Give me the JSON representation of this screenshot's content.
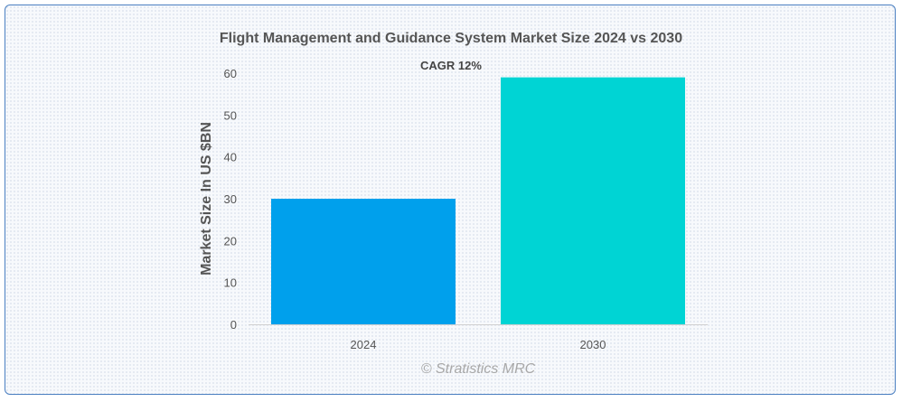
{
  "chart_data": {
    "type": "bar",
    "title": "Flight Management and Guidance System Market Size 2024 vs 2030",
    "annotation": "CAGR 12%",
    "xlabel": "",
    "ylabel": "Market Size In US $BN",
    "categories": [
      "2024",
      "2030"
    ],
    "values": [
      30,
      59
    ],
    "colors": [
      "#00a0ec",
      "#00d4d4"
    ],
    "ylim": [
      0,
      60
    ],
    "yticks": [
      "0",
      "10",
      "20",
      "30",
      "40",
      "50",
      "60"
    ],
    "grid": false,
    "legend": "none"
  },
  "watermark": "© Stratistics MRC"
}
